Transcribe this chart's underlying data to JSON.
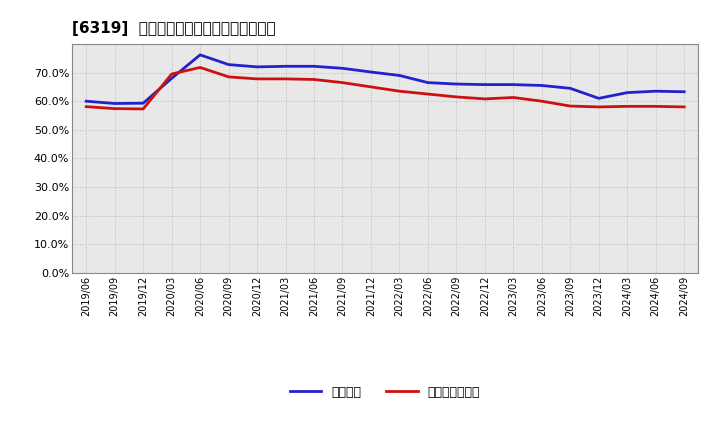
{
  "title": "[6319]  固定比率、固定長期適合率の推移",
  "background_color": "#ffffff",
  "plot_bg_color": "#e8e8e8",
  "grid_color": "#bbbbbb",
  "line1_label": "固定比率",
  "line1_color": "#2222cc",
  "line2_label": "固定長期適合率",
  "line2_color": "#cc1111",
  "line_width": 2.0,
  "ylim": [
    0.0,
    0.8
  ],
  "yticks": [
    0.0,
    0.1,
    0.2,
    0.3,
    0.4,
    0.5,
    0.6,
    0.7
  ],
  "x_labels": [
    "2019/06",
    "2019/09",
    "2019/12",
    "2020/03",
    "2020/06",
    "2020/09",
    "2020/12",
    "2021/03",
    "2021/06",
    "2021/09",
    "2021/12",
    "2022/03",
    "2022/06",
    "2022/09",
    "2022/12",
    "2023/03",
    "2023/06",
    "2023/09",
    "2023/12",
    "2024/03",
    "2024/06",
    "2024/09"
  ],
  "line1_values": [
    0.6,
    0.592,
    0.593,
    0.68,
    0.762,
    0.728,
    0.72,
    0.722,
    0.722,
    0.715,
    0.702,
    0.69,
    0.665,
    0.66,
    0.658,
    0.658,
    0.655,
    0.645,
    0.61,
    0.63,
    0.635,
    0.633
  ],
  "line2_values": [
    0.581,
    0.574,
    0.573,
    0.695,
    0.718,
    0.685,
    0.678,
    0.678,
    0.676,
    0.665,
    0.65,
    0.635,
    0.625,
    0.615,
    0.608,
    0.613,
    0.6,
    0.583,
    0.58,
    0.582,
    0.582,
    0.58
  ]
}
